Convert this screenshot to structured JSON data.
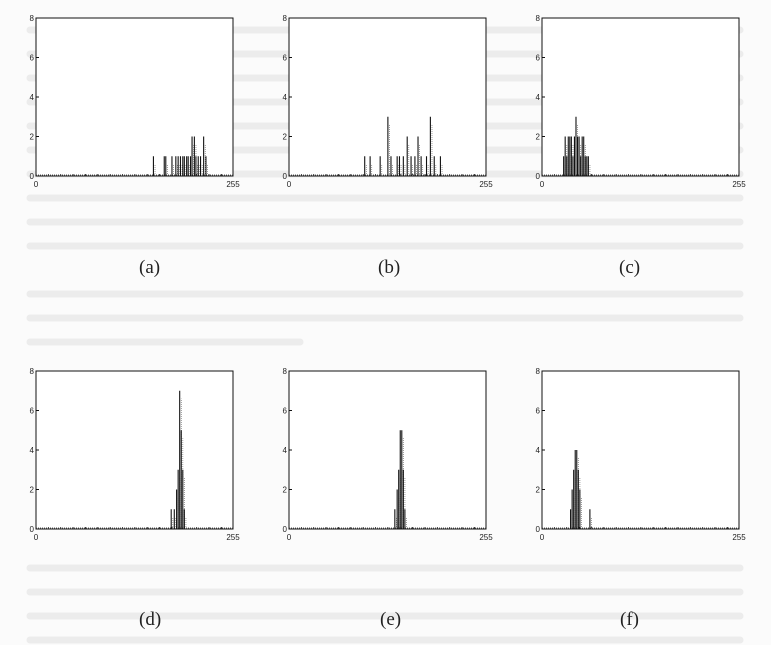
{
  "chart_data": [
    {
      "type": "bar",
      "caption": "(a)",
      "title": "",
      "xlabel": "",
      "ylabel": "",
      "xlim": [
        0,
        255
      ],
      "ylim": [
        0,
        8
      ],
      "yticks": [
        "0",
        "2",
        "4",
        "6",
        "8"
      ],
      "xticks": [
        "0",
        "255"
      ],
      "x": [
        152,
        166,
        168,
        176,
        181,
        184,
        187,
        190,
        192,
        195,
        197,
        200,
        202,
        205,
        207,
        210,
        213,
        217,
        220
      ],
      "values": [
        1,
        1,
        1,
        1,
        1,
        1,
        1,
        1,
        1,
        1,
        1,
        1,
        2,
        2,
        1,
        1,
        1,
        2,
        1
      ]
    },
    {
      "type": "bar",
      "caption": "(b)",
      "title": "",
      "xlabel": "",
      "ylabel": "",
      "xlim": [
        0,
        255
      ],
      "ylim": [
        0,
        8
      ],
      "yticks": [
        "0",
        "2",
        "4",
        "6",
        "8"
      ],
      "xticks": [
        "0",
        "255"
      ],
      "x": [
        98,
        105,
        118,
        128,
        132,
        140,
        143,
        148,
        153,
        158,
        163,
        167,
        171,
        178,
        183,
        188,
        196
      ],
      "values": [
        1,
        1,
        1,
        3,
        1,
        1,
        1,
        1,
        2,
        1,
        1,
        2,
        1,
        1,
        3,
        1,
        1
      ]
    },
    {
      "type": "bar",
      "caption": "(c)",
      "title": "",
      "xlabel": "",
      "ylabel": "",
      "xlim": [
        0,
        255
      ],
      "ylim": [
        0,
        8
      ],
      "yticks": [
        "0",
        "2",
        "4",
        "6",
        "8"
      ],
      "xticks": [
        "0",
        "255"
      ],
      "x": [
        28,
        30,
        32,
        34,
        36,
        38,
        40,
        42,
        44,
        46,
        48,
        50,
        52,
        54,
        56,
        58,
        60
      ],
      "values": [
        1,
        2,
        1,
        2,
        2,
        2,
        1,
        2,
        3,
        2,
        2,
        1,
        2,
        2,
        1,
        1,
        1
      ]
    },
    {
      "type": "bar",
      "caption": "(d)",
      "title": "",
      "xlabel": "",
      "ylabel": "",
      "xlim": [
        0,
        255
      ],
      "ylim": [
        0,
        8
      ],
      "yticks": [
        "0",
        "2",
        "4",
        "6",
        "8"
      ],
      "xticks": [
        "0",
        "255"
      ],
      "x": [
        175,
        179,
        182,
        184,
        186,
        188,
        190,
        192
      ],
      "values": [
        1,
        1,
        2,
        3,
        7,
        5,
        3,
        1
      ]
    },
    {
      "type": "bar",
      "caption": "(e)",
      "title": "",
      "xlabel": "",
      "ylabel": "",
      "xlim": [
        0,
        255
      ],
      "ylim": [
        0,
        8
      ],
      "yticks": [
        "0",
        "2",
        "4",
        "6",
        "8"
      ],
      "xticks": [
        "0",
        "255"
      ],
      "x": [
        137,
        140,
        142,
        144,
        146,
        148,
        150
      ],
      "values": [
        1,
        2,
        3,
        5,
        5,
        3,
        1
      ]
    },
    {
      "type": "bar",
      "caption": "(f)",
      "title": "",
      "xlabel": "",
      "ylabel": "",
      "xlim": [
        0,
        255
      ],
      "ylim": [
        0,
        8
      ],
      "yticks": [
        "0",
        "2",
        "4",
        "6",
        "8"
      ],
      "xticks": [
        "0",
        "255"
      ],
      "x": [
        37,
        39,
        41,
        43,
        45,
        47,
        49,
        62
      ],
      "values": [
        1,
        2,
        3,
        4,
        4,
        3,
        2,
        1
      ]
    }
  ]
}
